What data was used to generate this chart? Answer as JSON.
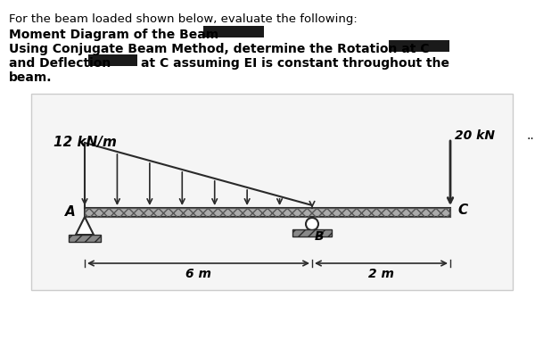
{
  "title_text": "For the beam loaded shown below, evaluate the following:",
  "line1": "Moment Diagram of the Beam",
  "line2": "Using Conjugate Beam Method, determine the Rotation at C",
  "line3": "and Deflection",
  "line3b": "at C assuming EI is constant throughout the",
  "line4": "beam.",
  "distributed_load_label": "12 kN/m",
  "point_load_label": "20 kN",
  "dim_left": "6 m",
  "dim_right": "2 m",
  "label_A": "A",
  "label_B": "B",
  "label_C": "C",
  "background_color": "#ffffff",
  "box_color": "#1a1a1a",
  "beam_color": "#2a2a2a",
  "hatch_color": "#555555",
  "load_color": "#111111",
  "redacted_color": "#1a1a1a"
}
